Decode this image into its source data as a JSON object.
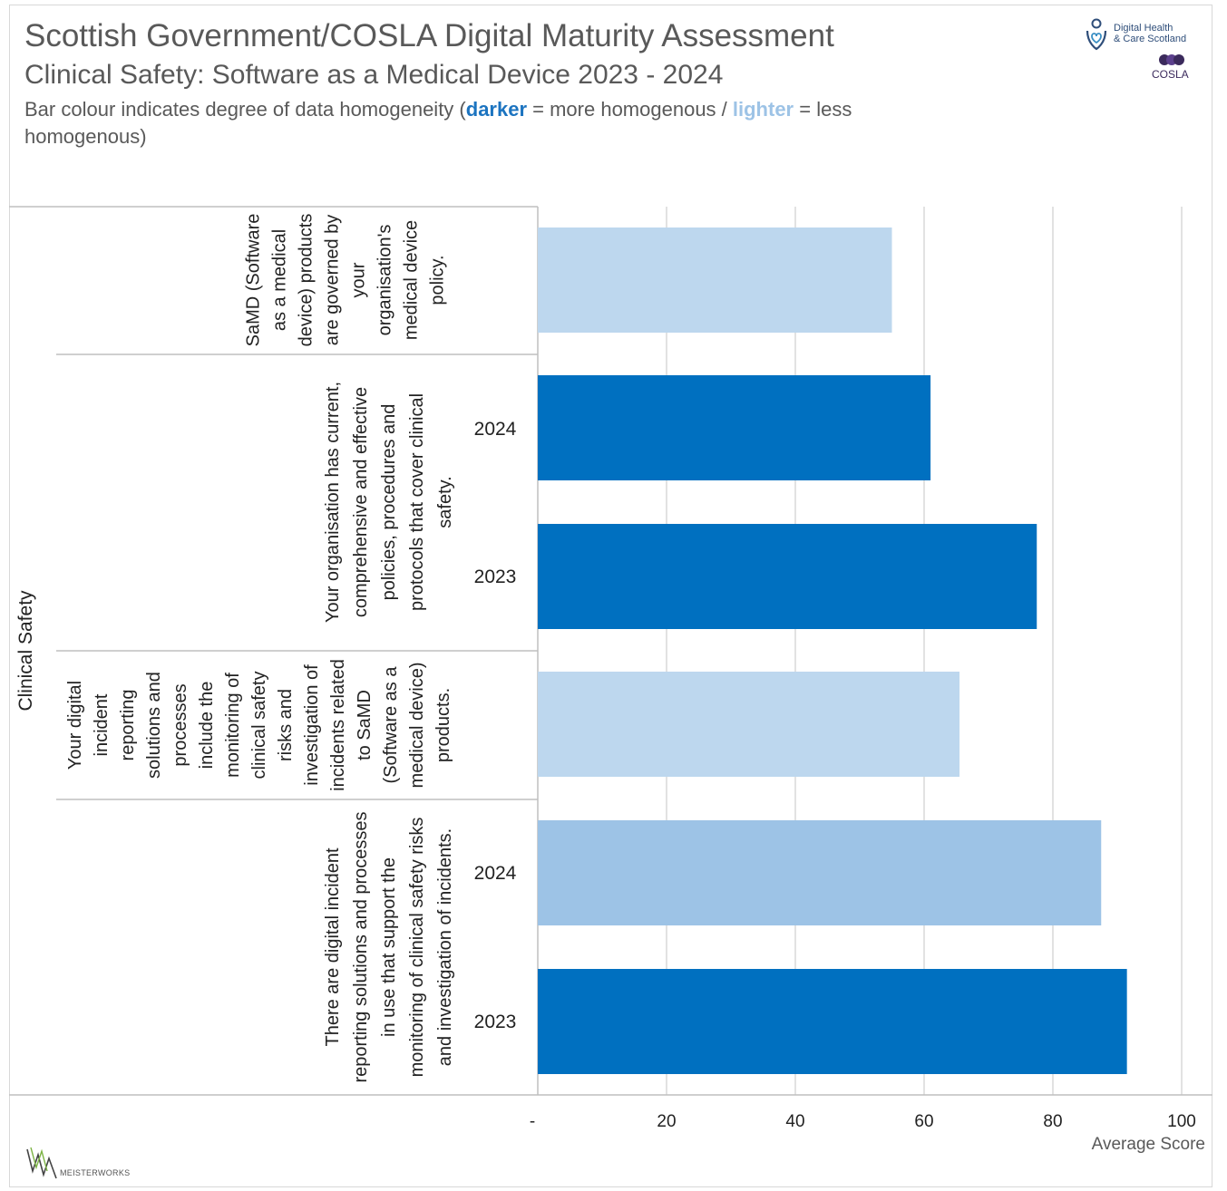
{
  "header": {
    "title": "Scottish Government/COSLA Digital Maturity Assessment",
    "subtitle": "Clinical Safety: Software as a Medical Device 2023 - 2024",
    "note_prefix": "Bar colour indicates degree of data homogeneity (",
    "note_darker": "darker",
    "note_mid": " = more homogenous / ",
    "note_lighter": "lighter",
    "note_suffix": " = less homogenous)"
  },
  "logos": {
    "dhcs_line1": "Digital Health",
    "dhcs_line2": "& Care Scotland",
    "cosla": "COSLA",
    "meisterworks": "MEISTERWORKS"
  },
  "colors": {
    "dark": "#0070c0",
    "light": "#bdd7ee",
    "medium": "#9dc3e6",
    "grid": "#d9d9d9",
    "text": "#595959"
  },
  "chart_data": {
    "type": "bar",
    "orientation": "horizontal",
    "category_group": "Clinical Safety",
    "xlabel": "Average Score",
    "xlim": [
      0,
      100
    ],
    "xticks": [
      "-",
      "20",
      "40",
      "60",
      "80",
      "100"
    ],
    "grid": true,
    "bars": [
      {
        "question": "SaMD (Software as a medical device) products are governed by your organisation's medical device policy.",
        "year": "",
        "value": 55,
        "shade": "light"
      },
      {
        "question": "Your organisation has current, comprehensive and effective policies, procedures and protocols that cover clinical safety.",
        "year": "2024",
        "value": 61,
        "shade": "dark"
      },
      {
        "question": "Your organisation has current, comprehensive and effective policies, procedures and protocols that cover clinical safety.",
        "year": "2023",
        "value": 77.5,
        "shade": "dark"
      },
      {
        "question": "Your digital incident reporting solutions and processes include the monitoring of clinical safety risks and investigation of incidents related to SaMD (Software as a medical device) products.",
        "year": "",
        "value": 65.5,
        "shade": "light"
      },
      {
        "question": "There are digital incident reporting solutions and processes in use that support the monitoring of clinical safety risks and investigation of incidents.",
        "year": "2024",
        "value": 87.5,
        "shade": "medium"
      },
      {
        "question": "There are digital incident reporting solutions and processes in use that support the monitoring of clinical safety risks and investigation of incidents.",
        "year": "2023",
        "value": 91.5,
        "shade": "dark"
      }
    ],
    "question_labels": [
      {
        "lines": [
          "SaMD (Software",
          "as a medical",
          "device) products",
          "are governed by",
          "your",
          "organisation's",
          "medical device",
          "policy."
        ]
      },
      {
        "lines": [
          "Your organisation has current,",
          "comprehensive and effective",
          "policies, procedures and",
          "protocols that cover clinical",
          "safety."
        ]
      },
      {
        "lines": [
          "Your digital",
          "incident",
          "reporting",
          "solutions and",
          "processes",
          "include the",
          "monitoring of",
          "clinical safety",
          "risks and",
          "investigation of",
          "incidents related",
          "to SaMD",
          "(Software as a",
          "medical device)",
          "products."
        ]
      },
      {
        "lines": [
          "There are digital incident",
          "reporting solutions and processes",
          "in use that support the",
          "monitoring of clinical safety risks",
          "and investigation of incidents."
        ]
      }
    ],
    "year_labels": [
      "2024",
      "2023",
      "2024",
      "2023"
    ]
  }
}
